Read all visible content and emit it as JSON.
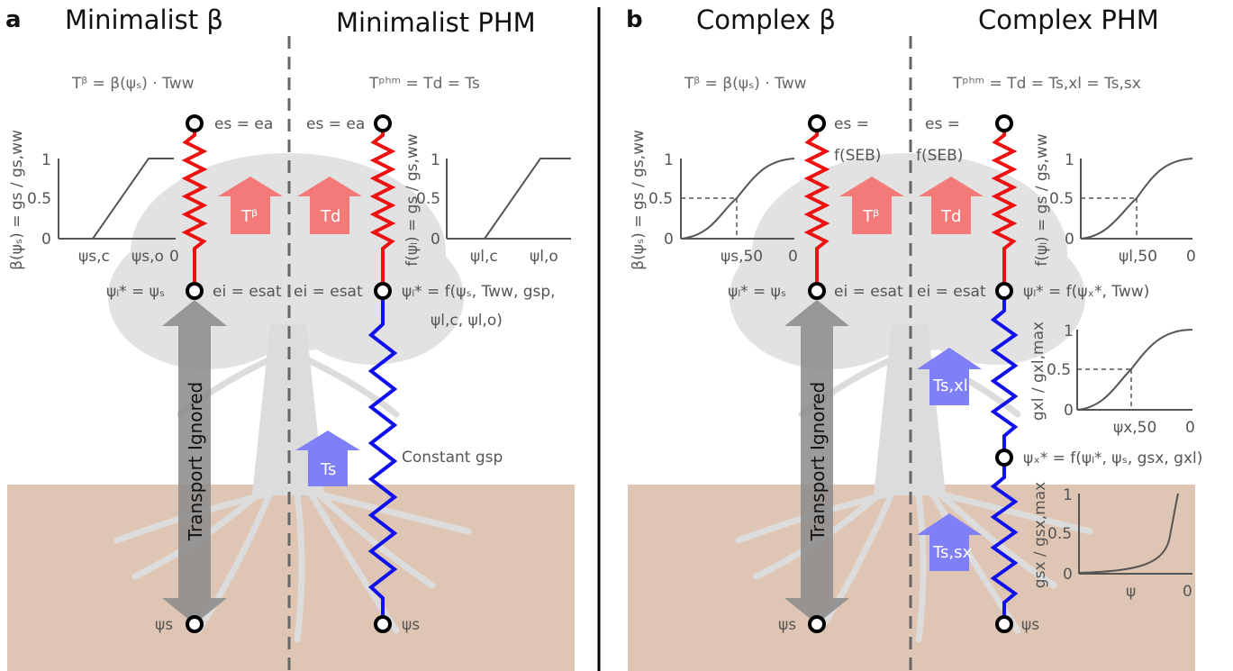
{
  "panels": {
    "a": {
      "letter": "a",
      "left_title": "Minimalist β",
      "right_title": "Minimalist PHM",
      "left_eq": "Tᵝ = β(ψₛ) · Tww",
      "right_eq": "Tᵖʰᵐ = Td = Ts",
      "node_top_left": "es = ea",
      "node_top_right": "es = ea",
      "node_mid_left": "ψₗ* = ψₛ",
      "node_mid_label_left": "ei = esat",
      "node_mid_label_right": "ei = esat",
      "node_mid_right_line1": "ψₗ* = f(ψₛ, Tww, gsp,",
      "node_mid_right_line2": "ψl,c, ψl,o)",
      "node_bottom_left": "ψs",
      "node_bottom_right": "ψs",
      "arrow_red_left": "Tᵝ",
      "arrow_red_right": "Td",
      "arrow_blue": "Ts",
      "constant_label": "Constant gsp",
      "transport_label": "Transport Ignored",
      "plot_left": {
        "ylabel": "β(ψₛ) = gs / gs,ww",
        "yticks": [
          "1",
          "0.5",
          "0"
        ],
        "xticks": [
          "ψs,c",
          "ψs,o",
          "0"
        ]
      },
      "plot_right": {
        "ylabel": "f(ψₗ) = gs / gs,ww",
        "yticks": [
          "1",
          "0.5",
          "0"
        ],
        "xticks": [
          "ψl,c",
          "ψl,o"
        ]
      }
    },
    "b": {
      "letter": "b",
      "left_title": "Complex β",
      "right_title": "Complex PHM",
      "left_eq": "Tᵝ = β(ψₛ) · Tww",
      "right_eq": "Tᵖʰᵐ = Td = Ts,xl = Ts,sx",
      "node_top_left_l1": "es =",
      "node_top_left_l2": "f(SEB)",
      "node_top_right_l1": "es =",
      "node_top_right_l2": "f(SEB)",
      "node_mid_left": "ψₗ* = ψₛ",
      "node_mid_label_left": "ei = esat",
      "node_mid_label_right": "ei = esat",
      "node_mid_right": "ψₗ* = f(ψₓ*, Tww)",
      "node_x_right": "ψₓ* = f(ψₗ*, ψₛ, gsx, gxl)",
      "node_bottom_left": "ψs",
      "node_bottom_right": "ψs",
      "arrow_red_left": "Tᵝ",
      "arrow_red_right": "Td",
      "arrow_blue_1": "Ts,xl",
      "arrow_blue_2": "Ts,sx",
      "transport_label": "Transport Ignored",
      "plot_left": {
        "ylabel": "β(ψₛ) = gs / gs,ww",
        "yticks": [
          "1",
          "0.5",
          "0"
        ],
        "xticks": [
          "ψs,50",
          "0"
        ]
      },
      "plot_right_top": {
        "ylabel": "f(ψₗ) = gs / gs,ww",
        "yticks": [
          "1",
          "0.5",
          "0"
        ],
        "xticks": [
          "ψl,50",
          "0"
        ]
      },
      "plot_right_mid": {
        "ylabel": "gxl / gxl,max",
        "yticks": [
          "1",
          "0.5",
          "0"
        ],
        "xticks": [
          "ψx,50",
          "0"
        ]
      },
      "plot_right_bot": {
        "ylabel": "gsx / gsx,max",
        "yticks": [
          "1",
          "0.5",
          "0"
        ],
        "xticks": [
          "ψ",
          "0"
        ]
      }
    }
  },
  "colors": {
    "soil": "#dfc6b4",
    "tree": "#dcdcdc",
    "red_path": "#ee1111",
    "blue_path": "#1111ee",
    "red_arrow": "#f47a7a",
    "blue_arrow": "#7f7ff7",
    "transport_arrow": "#8a8a8a"
  }
}
